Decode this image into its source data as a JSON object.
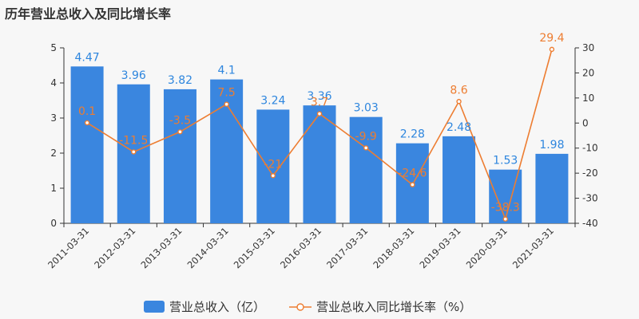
{
  "title": "历年营业总收入及同比增长率",
  "colors": {
    "bar": "#3a86df",
    "line": "#ed7d31",
    "axis": "#333333"
  },
  "chart_data": {
    "type": "bar",
    "title": "历年营业总收入及同比增长率",
    "categories": [
      "2011-03-31",
      "2012-03-31",
      "2013-03-31",
      "2014-03-31",
      "2015-03-31",
      "2016-03-31",
      "2017-03-31",
      "2018-03-31",
      "2019-03-31",
      "2020-03-31",
      "2021-03-31"
    ],
    "series": [
      {
        "name": "营业总收入（亿）",
        "type": "bar",
        "axis": "left",
        "values": [
          4.47,
          3.96,
          3.82,
          4.1,
          3.24,
          3.36,
          3.03,
          2.28,
          2.48,
          1.53,
          1.98
        ]
      },
      {
        "name": "营业总收入同比增长率（%）",
        "type": "line",
        "axis": "right",
        "values": [
          0.1,
          -11.5,
          -3.5,
          7.5,
          -21,
          3.7,
          -9.9,
          -24.6,
          8.6,
          -38.3,
          29.4
        ]
      }
    ],
    "y_left": {
      "ylim": [
        0,
        5
      ],
      "ticks": [
        "0",
        "1",
        "2",
        "3",
        "4",
        "5"
      ]
    },
    "y_right": {
      "ylim": [
        -40,
        30
      ],
      "ticks": [
        "-40",
        "-30",
        "-20",
        "-10",
        "0",
        "10",
        "20",
        "30"
      ]
    },
    "legend_position": "bottom",
    "grid": false
  }
}
